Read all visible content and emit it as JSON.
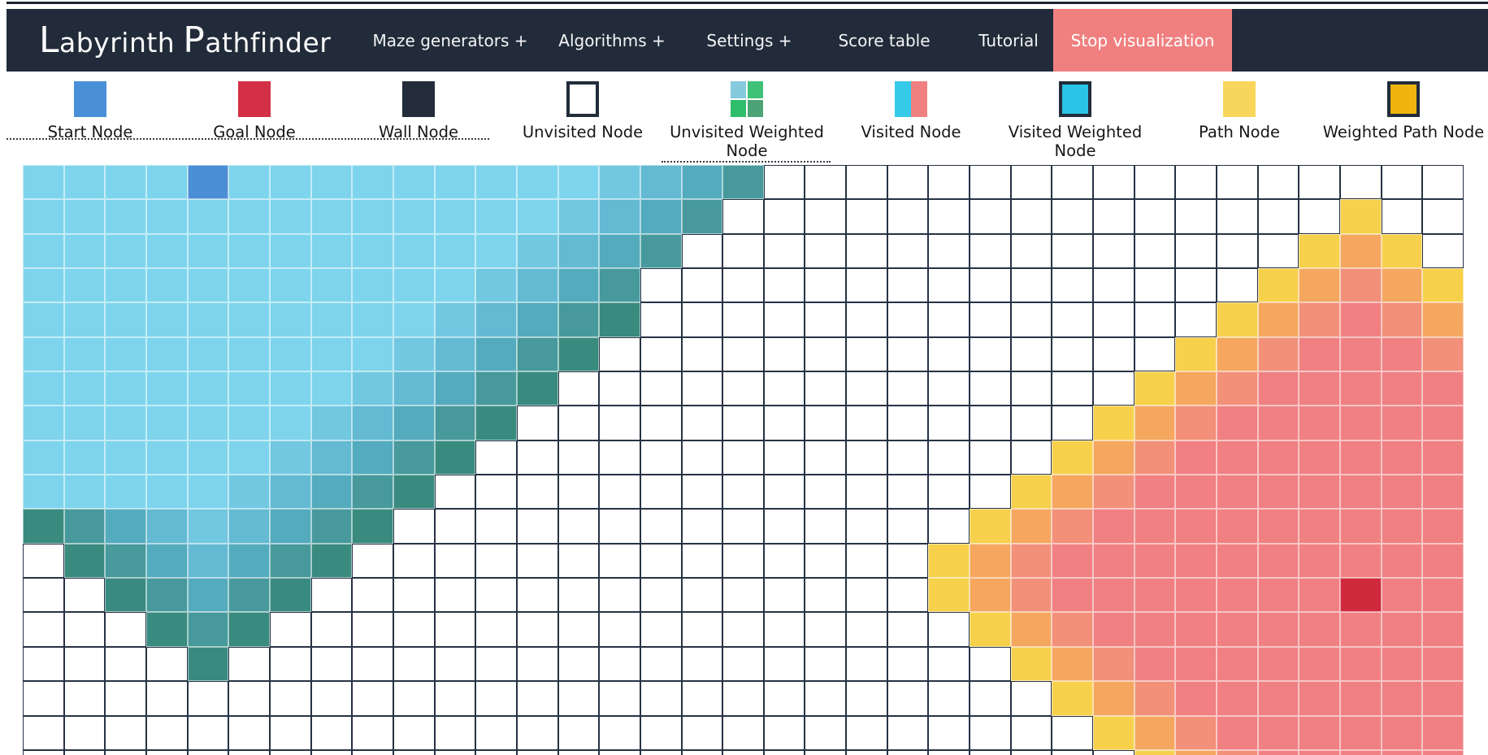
{
  "navbar": {
    "title_word1": "Labyrinth",
    "title_word2": "Pathfinder",
    "items": [
      "Maze generators +",
      "Algorithms +",
      "Settings +",
      "Score table",
      "Tutorial"
    ],
    "stop_button": "Stop visualization",
    "bg_color": "#212b39",
    "stop_button_color": "#f08080"
  },
  "legend": {
    "items": [
      {
        "label": "Start Node",
        "type": "solid",
        "color": "#4a90d9"
      },
      {
        "label": "Goal Node",
        "type": "solid",
        "color": "#d32f46"
      },
      {
        "label": "Wall Node",
        "type": "solid",
        "color": "#222c3b"
      },
      {
        "label": "Unvisited Node",
        "type": "bordered",
        "color": "#ffffff",
        "border": "#222c3b"
      },
      {
        "label": "Unvisited Weighted Node",
        "type": "quad",
        "colors": [
          "#85cadd",
          "#3fc278",
          "#2fbd6c",
          "#4da378"
        ]
      },
      {
        "label": "Visited Node",
        "type": "split",
        "colors": [
          "#35c9ea",
          "#f08080"
        ]
      },
      {
        "label": "Visited Weighted Node",
        "type": "bordered",
        "color": "#29c5e6",
        "border": "#222c3b"
      },
      {
        "label": "Path Node",
        "type": "solid",
        "color": "#f8d65c"
      },
      {
        "label": "Weighted Path Node",
        "type": "bordered",
        "color": "#f0b411",
        "border": "#222c3b"
      }
    ]
  },
  "grid": {
    "cols": 35,
    "rows": 18,
    "start": {
      "col": 4,
      "row": 0
    },
    "goal": {
      "col": 32,
      "row": 12
    },
    "palette": {
      ".": "#ffffff",
      "a": "#7ed4ec",
      "b": "#72c8e0",
      "c": "#63bad2",
      "d": "#53abbd",
      "e": "#47999c",
      "f": "#398a7f",
      "S": "#4a8fd5",
      "y": "#f7d04c",
      "n": "#f5a75f",
      "o": "#f2907a",
      "r": "#f08082",
      "G": "#ce2a3c"
    },
    "rows_map": [
      "aaaaSaaaaaaaaabcde.................",
      "aaaaaaaaaaaaabcde...............y..",
      "aaaaaaaaaaaabcde...............yny.",
      "aaaaaaaaaaabcde...............ynony",
      "aaaaaaaaaabcdef..............ynoron",
      "aaaaaaaaabcdef..............ynorrro",
      "aaaaaaaabcdef..............ynorrrrr",
      "aaaaaaabcdef..............ynorrrrrr",
      "aaaaaabcdef..............ynorrrrrrr",
      "aaaaabcdef..............ynorrrrrrrr",
      "fedcbcdef..............ynorrrrrrrrr",
      ".fedcdef..............ynorrrrrrrrrr",
      "..fedef...............ynorrrrrrrGrr",
      "...fef.................ynorrrrrrrrr",
      "....f...................ynorrrrrrrr",
      ".........................ynorrrrrrr",
      "..........................ynorrrrrr",
      "...........................ynorrrrr"
    ]
  }
}
